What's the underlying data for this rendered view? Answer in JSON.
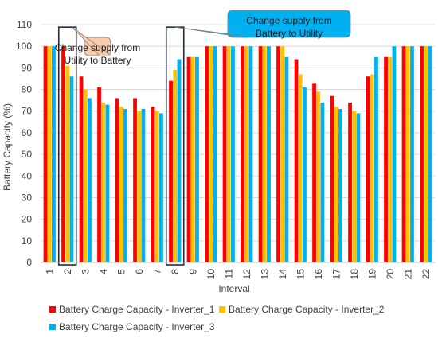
{
  "chart_data": {
    "type": "bar",
    "xlabel": "Interval",
    "ylabel": "Battery Capacity (%)",
    "ylim": [
      0,
      110
    ],
    "yticks": [
      "0",
      "10",
      "20",
      "30",
      "40",
      "50",
      "60",
      "70",
      "80",
      "90",
      "100",
      "110"
    ],
    "grid": true,
    "legend_position": "bottom",
    "categories": [
      "1",
      "2",
      "3",
      "4",
      "5",
      "6",
      "7",
      "8",
      "9",
      "10",
      "11",
      "12",
      "13",
      "14",
      "15",
      "16",
      "17",
      "18",
      "19",
      "20",
      "21",
      "22"
    ],
    "series": [
      {
        "name": "Battery Charge Capacity - Inverter_1",
        "color": "#ff0000",
        "values": [
          100,
          100,
          86,
          81,
          76,
          76,
          72,
          84,
          95,
          100,
          100,
          100,
          100,
          100,
          94,
          83,
          77,
          74,
          86,
          95,
          100,
          100
        ]
      },
      {
        "name": "Battery Charge Capacity - Inverter_2",
        "color": "#ffc000",
        "values": [
          100,
          91,
          80,
          74,
          72,
          70,
          70,
          89,
          95,
          100,
          100,
          100,
          100,
          100,
          87,
          79,
          72,
          70,
          87,
          95,
          100,
          100
        ]
      },
      {
        "name": "Battery Charge Capacity - Inverter_3",
        "color": "#00b0f0",
        "values": [
          100,
          86,
          76,
          73,
          71,
          71,
          69,
          94,
          95,
          100,
          100,
          100,
          100,
          95,
          81,
          74,
          71,
          69,
          95,
          100,
          100,
          100
        ]
      }
    ],
    "annotations": [
      {
        "text_lines": [
          "Change supply from",
          "Utility to Battery"
        ],
        "target_category": "2",
        "fill": "#f8cbad"
      },
      {
        "text_lines": [
          "Change supply from",
          "Battery to Utility"
        ],
        "target_category": "8",
        "fill": "#00b0f0"
      }
    ]
  }
}
